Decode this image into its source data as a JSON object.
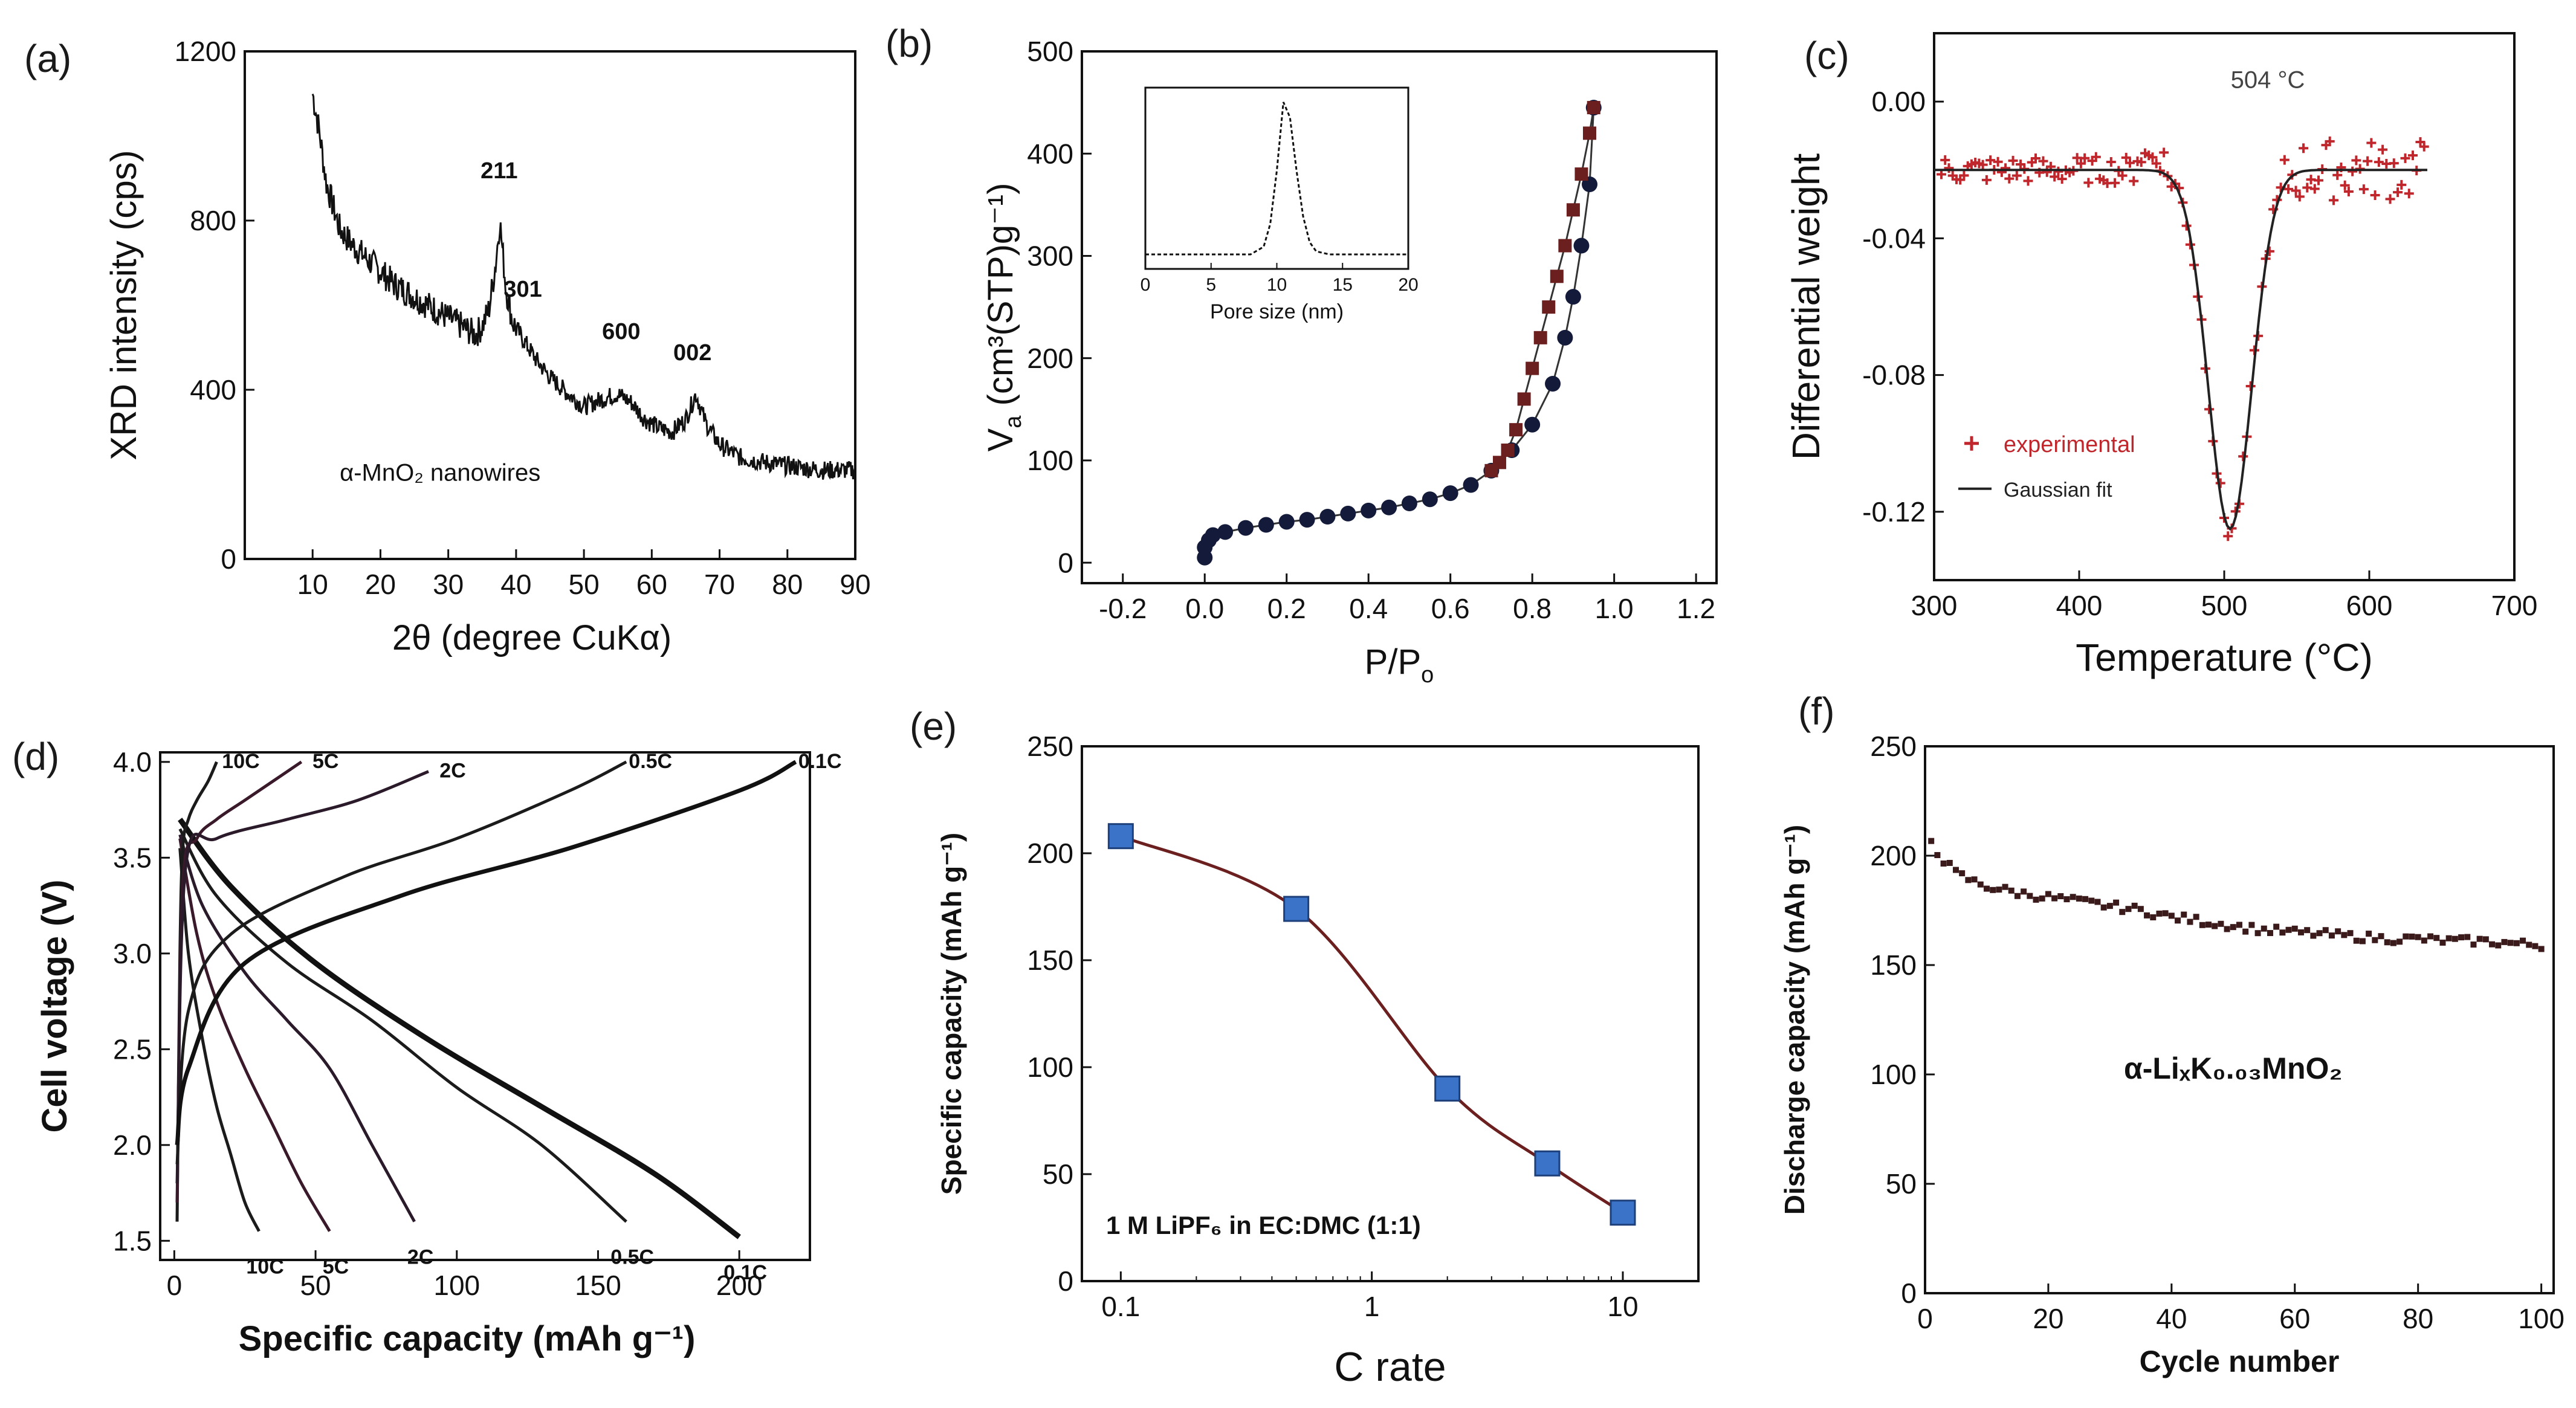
{
  "chart_data": [
    {
      "type": "line",
      "panel": "(a)",
      "xlabel": "2θ (degree CuKα)",
      "ylabel": "XRD intensity (cps)",
      "xlim": [
        0,
        90
      ],
      "ylim": [
        0,
        1200
      ],
      "xticks": [
        10,
        20,
        30,
        40,
        50,
        60,
        70,
        80,
        90
      ],
      "yticks": [
        0,
        400,
        800,
        1200
      ],
      "annotation": "α-MnO₂ nanowires",
      "peak_labels": [
        {
          "text": "211",
          "x": 37.5,
          "y": 900
        },
        {
          "text": "301",
          "x": 41,
          "y": 620
        },
        {
          "text": "600",
          "x": 55.5,
          "y": 520
        },
        {
          "text": "002",
          "x": 66,
          "y": 470
        }
      ],
      "series": [
        {
          "name": "XRD pattern",
          "x": [
            10,
            11,
            12,
            14,
            16,
            18,
            20,
            22,
            24,
            26,
            28,
            30,
            32,
            34,
            35,
            36,
            37,
            37.6,
            38.5,
            39.5,
            41,
            43,
            45,
            47,
            50,
            53,
            55,
            57,
            59,
            61,
            63,
            65,
            66.5,
            68,
            70,
            73,
            76,
            80,
            85,
            90
          ],
          "y": [
            1100,
            1010,
            890,
            780,
            740,
            710,
            680,
            650,
            630,
            610,
            590,
            570,
            550,
            530,
            550,
            590,
            700,
            800,
            640,
            560,
            520,
            470,
            430,
            400,
            360,
            380,
            390,
            370,
            330,
            310,
            300,
            330,
            390,
            320,
            270,
            240,
            230,
            220,
            210,
            210
          ]
        }
      ]
    },
    {
      "type": "scatter",
      "panel": "(b)",
      "xlabel": "P/P",
      "xlabel_sub": "o",
      "ylabel": "V",
      "ylabel_sub": "a",
      "ylabel_rest": " (cm³(STP)g⁻¹)",
      "xlim": [
        -0.3,
        1.25
      ],
      "ylim": [
        -20,
        500
      ],
      "xticks": [
        -0.2,
        0.0,
        0.2,
        0.4,
        0.6,
        0.8,
        1.0,
        1.2
      ],
      "yticks": [
        0,
        100,
        200,
        300,
        400,
        500
      ],
      "series": [
        {
          "name": "adsorption",
          "x": [
            0.0,
            0.0,
            0.01,
            0.02,
            0.05,
            0.1,
            0.15,
            0.2,
            0.25,
            0.3,
            0.35,
            0.4,
            0.45,
            0.5,
            0.55,
            0.6,
            0.65,
            0.7,
            0.75,
            0.8,
            0.85,
            0.88,
            0.9,
            0.92,
            0.94,
            0.95
          ],
          "y": [
            5,
            15,
            22,
            27,
            30,
            34,
            37,
            40,
            42,
            45,
            48,
            51,
            54,
            58,
            62,
            68,
            76,
            90,
            110,
            135,
            175,
            220,
            260,
            310,
            370,
            445
          ]
        },
        {
          "name": "desorption",
          "x": [
            0.95,
            0.94,
            0.92,
            0.9,
            0.88,
            0.86,
            0.84,
            0.82,
            0.8,
            0.78,
            0.76,
            0.74,
            0.72,
            0.7
          ],
          "y": [
            445,
            420,
            380,
            345,
            310,
            280,
            250,
            220,
            190,
            160,
            130,
            110,
            98,
            90
          ]
        }
      ],
      "inset": {
        "xlabel": "Pore size (nm)",
        "xlim": [
          0,
          20
        ],
        "xticks": [
          0,
          5,
          10,
          15,
          20
        ],
        "x": [
          0,
          2,
          4,
          6,
          8,
          9,
          9.5,
          10,
          10.5,
          11,
          11.5,
          12,
          12.5,
          13,
          14,
          16,
          18,
          20
        ],
        "y": [
          0,
          0,
          0,
          0,
          0,
          0.05,
          0.2,
          0.55,
          1.0,
          0.9,
          0.55,
          0.25,
          0.08,
          0.02,
          0,
          0,
          0,
          0
        ]
      }
    },
    {
      "type": "scatter",
      "panel": "(c)",
      "xlabel": "Temperature (°C)",
      "ylabel": "Differential weight",
      "xlim": [
        300,
        700
      ],
      "ylim": [
        -0.14,
        0.02
      ],
      "xticks": [
        300,
        400,
        500,
        600,
        700
      ],
      "yticks": [
        0.0,
        -0.04,
        -0.08,
        -0.12
      ],
      "ytick_labels": [
        "0.00",
        "-0.04",
        "-0.08",
        "-0.12"
      ],
      "annotation": "504 °C",
      "legend": [
        "experimental",
        "Gaussian fit"
      ],
      "gaussian_fit": {
        "baseline": -0.02,
        "amplitude": -0.105,
        "center": 504,
        "sigma": 15,
        "x_range": [
          300,
          640
        ]
      }
    },
    {
      "type": "line",
      "panel": "(d)",
      "xlabel": "Specific capacity (mAh g⁻¹)",
      "ylabel": "Cell voltage (V)",
      "xlim": [
        -5,
        225
      ],
      "ylim": [
        1.4,
        4.05
      ],
      "xticks": [
        0,
        50,
        100,
        150,
        200
      ],
      "yticks": [
        1.5,
        2.0,
        2.5,
        3.0,
        3.5,
        4.0
      ],
      "discharge": [
        {
          "name": "10C",
          "x": [
            2,
            5,
            10,
            15,
            20,
            25,
            30
          ],
          "y": [
            3.55,
            3.0,
            2.55,
            2.2,
            1.95,
            1.7,
            1.55
          ]
        },
        {
          "name": "5C",
          "x": [
            2,
            8,
            15,
            25,
            35,
            45,
            55
          ],
          "y": [
            3.6,
            3.1,
            2.75,
            2.4,
            2.1,
            1.8,
            1.55
          ]
        },
        {
          "name": "2C",
          "x": [
            2,
            10,
            25,
            40,
            55,
            70,
            85
          ],
          "y": [
            3.62,
            3.25,
            2.9,
            2.65,
            2.4,
            2.0,
            1.6
          ]
        },
        {
          "name": "0.5C",
          "x": [
            2,
            15,
            40,
            70,
            100,
            130,
            160
          ],
          "y": [
            3.65,
            3.3,
            2.95,
            2.65,
            2.3,
            2.0,
            1.6
          ]
        },
        {
          "name": "0.1C",
          "x": [
            2,
            20,
            50,
            90,
            130,
            170,
            200
          ],
          "y": [
            3.7,
            3.35,
            2.95,
            2.55,
            2.2,
            1.85,
            1.52
          ]
        }
      ],
      "charge": [
        {
          "name": "10C",
          "x": [
            1,
            2,
            3,
            5,
            8,
            12,
            15
          ],
          "y": [
            1.6,
            3.0,
            3.55,
            3.7,
            3.8,
            3.9,
            4.0
          ]
        },
        {
          "name": "5C",
          "x": [
            1,
            3,
            8,
            15,
            25,
            35,
            45
          ],
          "y": [
            1.7,
            3.35,
            3.6,
            3.7,
            3.8,
            3.9,
            4.0
          ]
        },
        {
          "name": "2C",
          "x": [
            1,
            4,
            15,
            40,
            65,
            90
          ],
          "y": [
            1.8,
            3.45,
            3.6,
            3.7,
            3.8,
            3.95
          ]
        },
        {
          "name": "0.5C",
          "x": [
            1,
            5,
            20,
            60,
            100,
            140,
            160
          ],
          "y": [
            1.9,
            2.7,
            3.1,
            3.4,
            3.6,
            3.85,
            4.0
          ]
        },
        {
          "name": "0.1C",
          "x": [
            1,
            5,
            25,
            80,
            140,
            200,
            220
          ],
          "y": [
            2.0,
            2.4,
            2.95,
            3.3,
            3.55,
            3.85,
            4.0
          ]
        }
      ],
      "discharge_labels": [
        "10C",
        "5C",
        "2C",
        "0.5C",
        "0.1C"
      ],
      "charge_labels": [
        "10C",
        "5C",
        "2C",
        "0.5C",
        "0.1C"
      ]
    },
    {
      "type": "line",
      "panel": "(e)",
      "xlabel": "C rate",
      "ylabel": "Specific capacity (mAh g⁻¹)",
      "xscale": "log",
      "xlim": [
        0.07,
        20
      ],
      "ylim": [
        0,
        250
      ],
      "xticks": [
        0.1,
        1,
        10
      ],
      "xtick_labels": [
        "0.1",
        "1",
        "10"
      ],
      "yticks": [
        0,
        50,
        100,
        150,
        200,
        250
      ],
      "annotation": "1 M  LiPF₆ in EC:DMC (1:1)",
      "series": [
        {
          "name": "capacity",
          "x": [
            0.1,
            0.5,
            2,
            5,
            10
          ],
          "y": [
            208,
            174,
            90,
            55,
            32
          ]
        }
      ]
    },
    {
      "type": "scatter",
      "panel": "(f)",
      "xlabel": "Cycle number",
      "ylabel": "Discharge capacity (mAh g⁻¹)",
      "xlim": [
        0,
        102
      ],
      "ylim": [
        0,
        250
      ],
      "xticks": [
        0,
        20,
        40,
        60,
        80,
        100
      ],
      "yticks": [
        0,
        50,
        100,
        150,
        200,
        250
      ],
      "annotation": "α-LiₓK₀.₀₃MnO₂",
      "series": [
        {
          "name": "discharge capacity",
          "x": [
            1,
            2,
            3,
            5,
            8,
            10,
            15,
            20,
            25,
            30,
            35,
            40,
            45,
            50,
            55,
            60,
            65,
            70,
            75,
            80,
            85,
            90,
            95,
            100
          ],
          "y": [
            207,
            202,
            198,
            192,
            188,
            186,
            183,
            181,
            179,
            177,
            175,
            172,
            170,
            168,
            166,
            165,
            164,
            163,
            162,
            162,
            161,
            161,
            160,
            159
          ]
        }
      ]
    }
  ]
}
